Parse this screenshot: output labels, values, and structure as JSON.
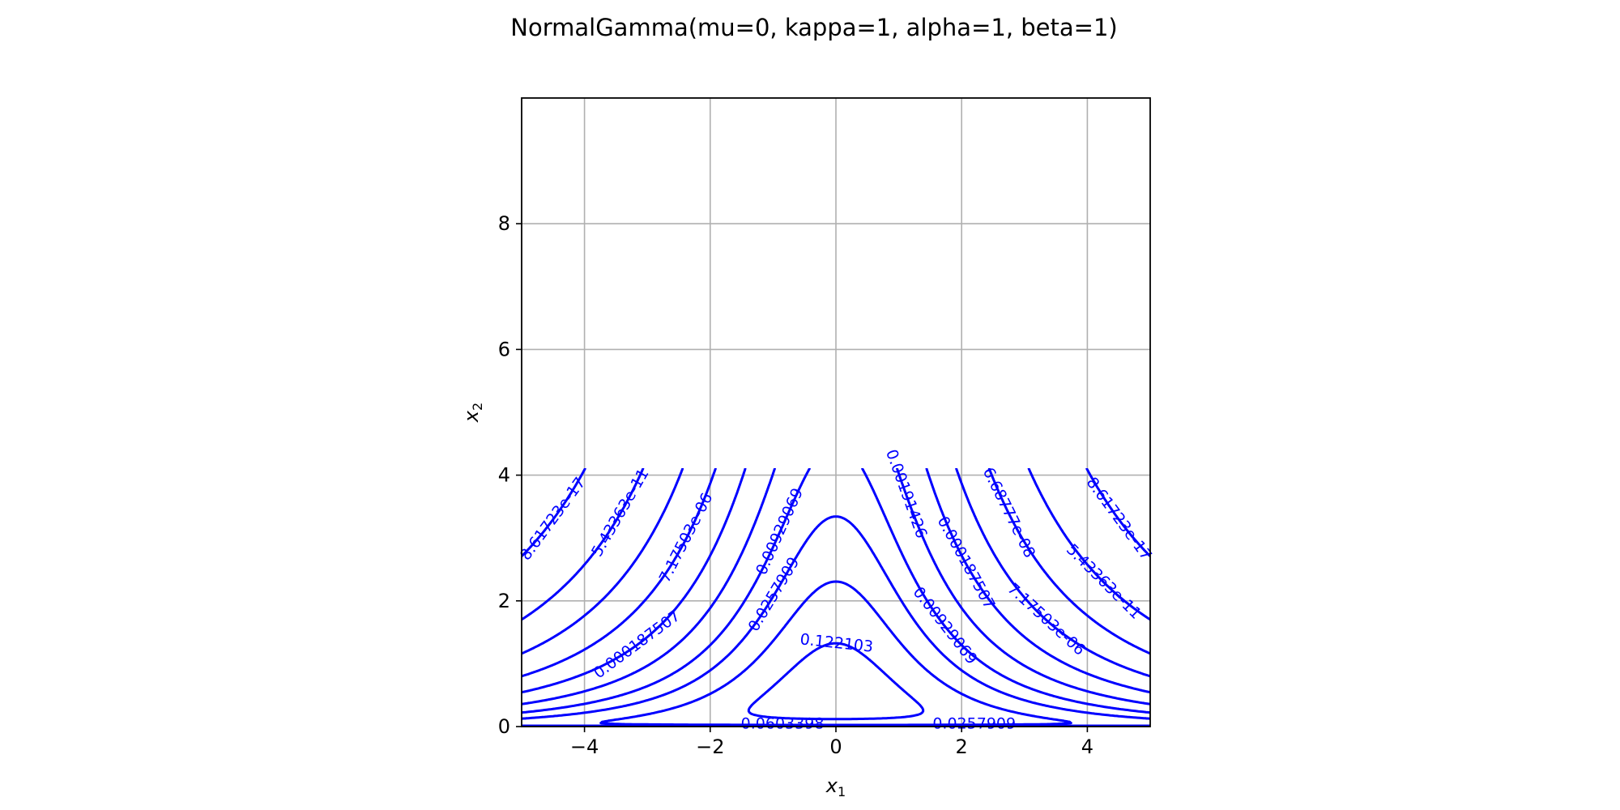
{
  "chart_data": {
    "type": "contour",
    "title": "NormalGamma(mu=0, kappa=1, alpha=1, beta=1)",
    "xlabel": "x",
    "xlabel_sub": "1",
    "ylabel": "x",
    "ylabel_sub": "2",
    "xlim": [
      -5,
      5
    ],
    "ylim": [
      0,
      10
    ],
    "data_ylim_visible": [
      0,
      4.1
    ],
    "x_ticks": [
      -4,
      -2,
      0,
      2,
      4
    ],
    "x_tick_labels": [
      "−4",
      "−2",
      "0",
      "2",
      "4"
    ],
    "y_ticks": [
      0,
      2,
      4,
      6,
      8
    ],
    "y_tick_labels": [
      "0",
      "2",
      "4",
      "6",
      "8"
    ],
    "grid": true,
    "line_color": "#0000ff",
    "density": {
      "family": "NormalGamma",
      "mu": 0,
      "kappa": 1,
      "alpha": 1,
      "beta": 1
    },
    "levels": [
      8.61723e-17,
      5.43363e-11,
      6.68777e-08,
      7.17503e-06,
      0.000187507,
      0.00191426,
      0.00929069,
      0.0257909,
      0.0603398,
      0.122103
    ],
    "level_labels": [
      "8.61723e-17",
      "5.43363e-11",
      "6.68777e-08",
      "7.17503e-06",
      "0.000187507",
      "0.00191426",
      "0.00929069",
      "0.0257909",
      "0.0603398",
      "0.122103"
    ]
  }
}
